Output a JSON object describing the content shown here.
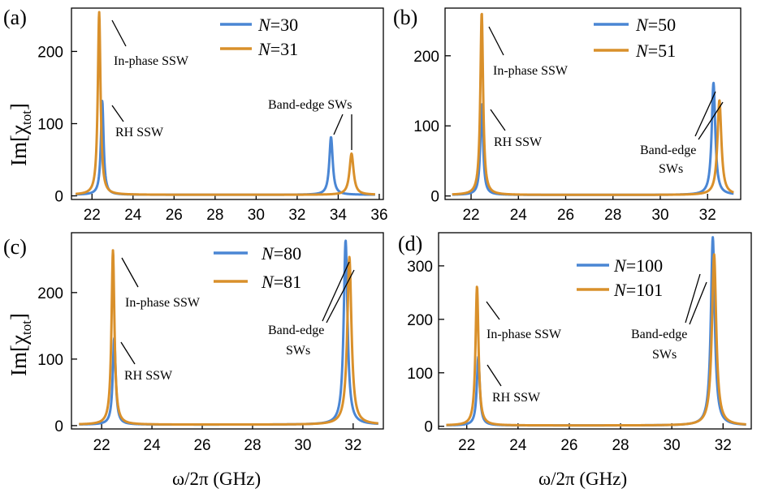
{
  "figure": {
    "xlabel": "ω/2π (GHz)",
    "ylabel": "Im[χ",
    "ylabel_sub": "tot",
    "ylabel_end": "]"
  },
  "colors": {
    "blue": "#4a86d4",
    "orange": "#d9902b"
  },
  "chart_data": [
    {
      "type": "line",
      "panel": "(a)",
      "xlim": [
        21,
        36.2
      ],
      "ylim": [
        -5,
        260
      ],
      "xticks": [
        22,
        24,
        26,
        28,
        30,
        32,
        34,
        36
      ],
      "yticks": [
        0,
        100,
        200
      ],
      "series": [
        {
          "name": "30",
          "color": "blue",
          "peaks": [
            {
              "x": 22.5,
              "h": 130,
              "w": 0.08
            },
            {
              "x": 33.65,
              "h": 80,
              "w": 0.1
            }
          ],
          "xrange": [
            21.2,
            35.8
          ]
        },
        {
          "name": "31",
          "color": "orange",
          "peaks": [
            {
              "x": 22.35,
              "h": 253,
              "w": 0.08
            },
            {
              "x": 34.65,
              "h": 57,
              "w": 0.12
            }
          ],
          "xrange": [
            21.2,
            35.8
          ]
        }
      ],
      "annotations": [
        {
          "text": "In-phase SSW",
          "arrow_to": [
            22.5,
            245
          ]
        },
        {
          "text": "RH SSW",
          "arrow_to": [
            22.6,
            130
          ]
        },
        {
          "text": "Band-edge SWs",
          "arrows_to": [
            [
              33.65,
              82
            ],
            [
              34.65,
              60
            ]
          ]
        }
      ]
    },
    {
      "type": "line",
      "panel": "(b)",
      "xlim": [
        20.9,
        33.4
      ],
      "ylim": [
        -5,
        268
      ],
      "xticks": [
        22,
        24,
        26,
        28,
        30,
        32
      ],
      "yticks": [
        0,
        100,
        200
      ],
      "series": [
        {
          "name": "50",
          "color": "blue",
          "peaks": [
            {
              "x": 22.45,
              "h": 130,
              "w": 0.07
            },
            {
              "x": 32.25,
              "h": 160,
              "w": 0.09
            }
          ],
          "xrange": [
            21.2,
            33.1
          ]
        },
        {
          "name": "51",
          "color": "orange",
          "peaks": [
            {
              "x": 22.45,
              "h": 260,
              "w": 0.07
            },
            {
              "x": 32.5,
              "h": 135,
              "w": 0.1
            }
          ],
          "xrange": [
            21.2,
            33.1
          ]
        }
      ],
      "annotations": [
        {
          "text": "In-phase SSW",
          "arrow_to": [
            22.55,
            245
          ]
        },
        {
          "text": "RH SSW",
          "arrow_to": [
            22.6,
            130
          ]
        },
        {
          "text": "Band-edge",
          "text2": "SWs",
          "arrows_to": [
            [
              32.25,
              158
            ],
            [
              32.5,
              133
            ]
          ]
        }
      ]
    },
    {
      "type": "line",
      "panel": "(c)",
      "xlim": [
        20.8,
        33.2
      ],
      "ylim": [
        -5,
        290
      ],
      "xticks": [
        22,
        24,
        26,
        28,
        30,
        32
      ],
      "yticks": [
        0,
        100,
        200
      ],
      "series": [
        {
          "name": "80",
          "color": "blue",
          "peaks": [
            {
              "x": 22.5,
              "h": 130,
              "w": 0.07
            },
            {
              "x": 31.7,
              "h": 277,
              "w": 0.09
            }
          ],
          "xrange": [
            21.1,
            33.0
          ]
        },
        {
          "name": "81",
          "color": "orange",
          "peaks": [
            {
              "x": 22.45,
              "h": 262,
              "w": 0.07
            },
            {
              "x": 31.85,
              "h": 252,
              "w": 0.1
            }
          ],
          "xrange": [
            21.1,
            33.0
          ]
        }
      ],
      "annotations": [
        {
          "text": "In-phase SSW",
          "arrow_to": [
            22.55,
            245
          ]
        },
        {
          "text": "RH SSW",
          "arrow_to": [
            22.6,
            125
          ]
        },
        {
          "text": "Band-edge",
          "text2": "SWs",
          "arrows_to": [
            [
              31.7,
              270
            ],
            [
              31.85,
              250
            ]
          ]
        }
      ]
    },
    {
      "type": "line",
      "panel": "(d)",
      "xlim": [
        20.9,
        33.1
      ],
      "ylim": [
        -5,
        362
      ],
      "xticks": [
        22,
        24,
        26,
        28,
        30,
        32
      ],
      "yticks": [
        0,
        100,
        200,
        300
      ],
      "series": [
        {
          "name": "100",
          "color": "blue",
          "peaks": [
            {
              "x": 22.45,
              "h": 128,
              "w": 0.07
            },
            {
              "x": 31.6,
              "h": 352,
              "w": 0.09
            }
          ],
          "xrange": [
            21.2,
            32.9
          ]
        },
        {
          "name": "101",
          "color": "orange",
          "peaks": [
            {
              "x": 22.4,
              "h": 260,
              "w": 0.07
            },
            {
              "x": 31.65,
              "h": 320,
              "w": 0.1
            }
          ],
          "xrange": [
            21.2,
            32.9
          ]
        }
      ],
      "annotations": [
        {
          "text": "In-phase SSW",
          "arrow_to": [
            22.55,
            245
          ]
        },
        {
          "text": "RH SSW",
          "arrow_to": [
            22.6,
            125
          ]
        },
        {
          "text": "Band-edge",
          "text2": "SWs",
          "arrows_to": [
            [
              31.5,
              340
            ],
            [
              31.6,
              320
            ]
          ]
        }
      ]
    }
  ]
}
